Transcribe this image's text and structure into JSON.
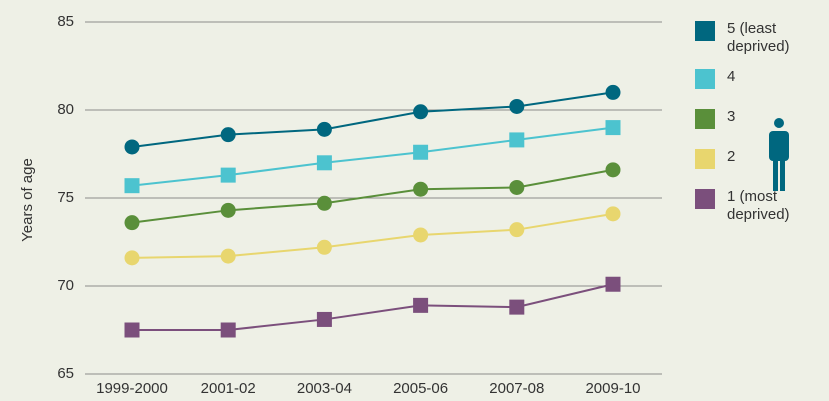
{
  "chart_data": {
    "type": "line",
    "y_label": "Years of age",
    "categories": [
      "1999-2000",
      "2001-02",
      "2003-04",
      "2005-06",
      "2007-08",
      "2009-10"
    ],
    "series": [
      {
        "name": "5 (least deprived)",
        "color": "#00677f",
        "marker": "circle",
        "values": [
          77.9,
          78.6,
          78.9,
          79.9,
          80.2,
          81.0
        ]
      },
      {
        "name": "4",
        "color": "#4cc3cf",
        "marker": "square",
        "values": [
          75.7,
          76.3,
          77.0,
          77.6,
          78.3,
          79.0
        ]
      },
      {
        "name": "3",
        "color": "#5a8f3a",
        "marker": "circle",
        "values": [
          73.6,
          74.3,
          74.7,
          75.5,
          75.6,
          76.6
        ]
      },
      {
        "name": "2",
        "color": "#e8d66e",
        "marker": "circle",
        "values": [
          71.6,
          71.7,
          72.2,
          72.9,
          73.2,
          74.1
        ]
      },
      {
        "name": "1 (most deprived)",
        "color": "#7b4f7c",
        "marker": "square",
        "values": [
          67.5,
          67.5,
          68.1,
          68.9,
          68.8,
          70.1
        ]
      }
    ],
    "ylim": [
      65,
      85
    ],
    "yticks": [
      65,
      70,
      75,
      80,
      85
    ],
    "grid": true,
    "legend": "right"
  }
}
